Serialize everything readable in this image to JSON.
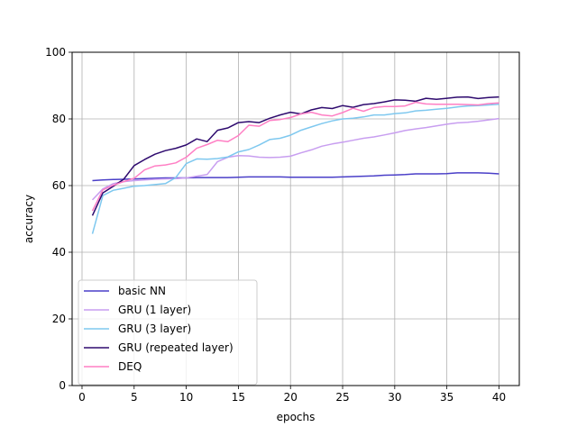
{
  "chart_data": {
    "type": "line",
    "xlabel": "epochs",
    "ylabel": "accuracy",
    "xlim": [
      -0.95,
      41.95
    ],
    "ylim": [
      0,
      100
    ],
    "xticks": [
      0,
      5,
      10,
      15,
      20,
      25,
      30,
      35,
      40
    ],
    "yticks": [
      0,
      20,
      40,
      60,
      80,
      100
    ],
    "grid": true,
    "legend_position": "lower-left",
    "x": [
      1,
      2,
      3,
      4,
      5,
      6,
      7,
      8,
      9,
      10,
      11,
      12,
      13,
      14,
      15,
      16,
      17,
      18,
      19,
      20,
      21,
      22,
      23,
      24,
      25,
      26,
      27,
      28,
      29,
      30,
      31,
      32,
      33,
      34,
      35,
      36,
      37,
      38,
      39,
      40
    ],
    "series": [
      {
        "name": "basic NN",
        "color": "#4a3fc8",
        "values": [
          61.5,
          61.7,
          61.8,
          61.9,
          62.0,
          62.1,
          62.2,
          62.3,
          62.3,
          62.3,
          62.4,
          62.4,
          62.4,
          62.4,
          62.5,
          62.6,
          62.6,
          62.6,
          62.6,
          62.5,
          62.5,
          62.5,
          62.5,
          62.5,
          62.6,
          62.7,
          62.8,
          62.9,
          63.1,
          63.2,
          63.3,
          63.5,
          63.5,
          63.5,
          63.6,
          63.8,
          63.8,
          63.8,
          63.7,
          63.5
        ]
      },
      {
        "name": "GRU (1 layer)",
        "color": "#c89ef0",
        "values": [
          55.7,
          59.0,
          60.6,
          61.2,
          61.5,
          61.7,
          61.9,
          62.0,
          62.1,
          62.3,
          62.8,
          63.3,
          67.2,
          68.5,
          69.0,
          68.9,
          68.5,
          68.4,
          68.5,
          68.8,
          69.8,
          70.7,
          71.8,
          72.5,
          73.0,
          73.6,
          74.2,
          74.6,
          75.2,
          75.8,
          76.5,
          77.0,
          77.4,
          77.9,
          78.4,
          78.8,
          79.0,
          79.3,
          79.7,
          80.1
        ]
      },
      {
        "name": "GRU (3 layer)",
        "color": "#7ec8ef",
        "values": [
          45.5,
          57.0,
          58.6,
          59.2,
          59.8,
          60.0,
          60.3,
          60.6,
          62.4,
          66.6,
          68.0,
          67.9,
          68.1,
          68.6,
          70.1,
          70.8,
          72.2,
          73.8,
          74.2,
          75.1,
          76.6,
          77.6,
          78.6,
          79.4,
          80.0,
          80.2,
          80.6,
          81.2,
          81.2,
          81.6,
          81.8,
          82.4,
          82.6,
          82.9,
          83.2,
          83.6,
          83.9,
          84.0,
          84.2,
          84.4
        ]
      },
      {
        "name": "GRU (repeated layer)",
        "color": "#2e0a6e",
        "values": [
          51.0,
          57.8,
          59.8,
          61.9,
          66.0,
          67.8,
          69.4,
          70.5,
          71.2,
          72.2,
          74.0,
          73.2,
          76.6,
          77.3,
          78.9,
          79.2,
          78.9,
          80.2,
          81.2,
          82.0,
          81.5,
          82.7,
          83.4,
          83.1,
          84.0,
          83.5,
          84.3,
          84.6,
          85.1,
          85.7,
          85.6,
          85.3,
          86.2,
          85.9,
          86.2,
          86.5,
          86.6,
          86.1,
          86.4,
          86.6
        ]
      },
      {
        "name": "DEQ",
        "color": "#ff7fc4",
        "values": [
          52.4,
          58.7,
          60.1,
          61.2,
          62.2,
          64.7,
          65.9,
          66.2,
          66.8,
          68.5,
          71.2,
          72.3,
          73.6,
          73.2,
          75.0,
          78.1,
          77.8,
          79.5,
          79.8,
          80.4,
          81.5,
          82.0,
          81.2,
          80.9,
          81.9,
          83.2,
          82.3,
          83.4,
          83.7,
          83.7,
          83.9,
          85.0,
          84.5,
          84.4,
          84.4,
          84.4,
          84.3,
          84.2,
          84.6,
          84.8
        ]
      }
    ]
  }
}
